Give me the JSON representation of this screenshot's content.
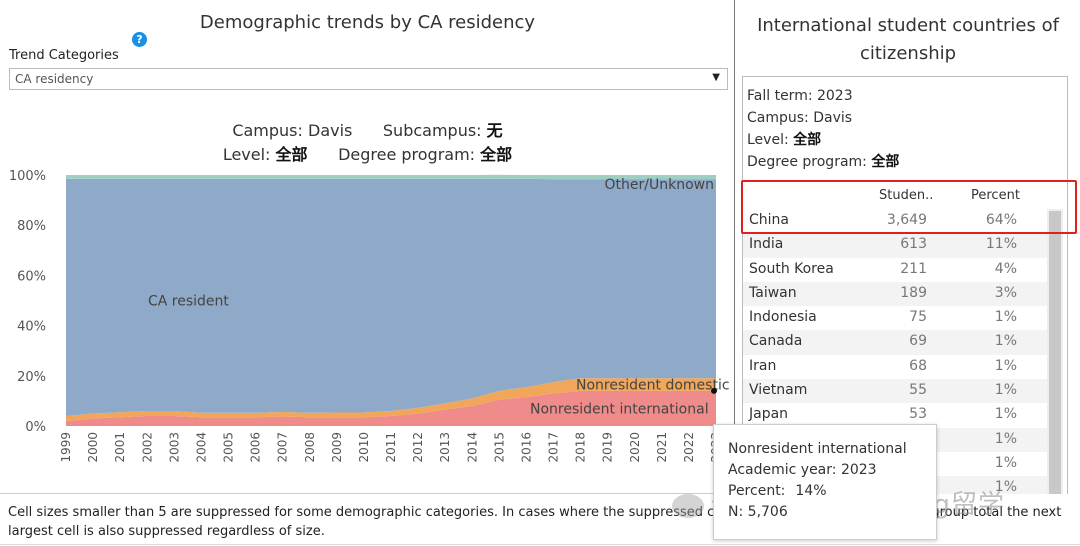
{
  "left": {
    "title": "Demographic trends by CA residency",
    "filter_label": "Trend Categories",
    "dropdown_value": "CA residency",
    "meta1": {
      "campus_label": "Campus:",
      "campus_value": "Davis",
      "subcampus_label": "Subcampus:",
      "subcampus_value": "无"
    },
    "meta2": {
      "level_label": "Level:",
      "level_value": "全部",
      "degree_label": "Degree program:",
      "degree_value": "全部"
    }
  },
  "chart_data": {
    "type": "area",
    "stacked": true,
    "x": [
      "1999",
      "2000",
      "2001",
      "2002",
      "2003",
      "2004",
      "2005",
      "2006",
      "2007",
      "2008",
      "2009",
      "2010",
      "2011",
      "2012",
      "2013",
      "2014",
      "2015",
      "2016",
      "2017",
      "2018",
      "2019",
      "2020",
      "2021",
      "2022",
      "2023"
    ],
    "series": [
      {
        "name": "Nonresident international",
        "color": "#f08b8b",
        "values": [
          2,
          3,
          3.5,
          4,
          4,
          3.5,
          3.5,
          3.5,
          3.8,
          3.5,
          3.5,
          3.5,
          4,
          5,
          6.5,
          8,
          10.5,
          11.5,
          13,
          14,
          14,
          14,
          14,
          14,
          14
        ]
      },
      {
        "name": "Nonresident domestic",
        "color": "#f2a65a",
        "values": [
          2,
          2,
          2,
          2,
          2,
          1.8,
          1.8,
          1.8,
          1.8,
          1.8,
          1.9,
          1.9,
          2,
          2.2,
          2.5,
          3,
          3.5,
          4,
          4.5,
          5,
          5,
          5,
          5,
          5,
          5
        ]
      },
      {
        "name": "CA resident",
        "color": "#8faac8",
        "values": [
          94.5,
          93.5,
          93,
          92.5,
          92.5,
          93.2,
          93.2,
          93.2,
          92.9,
          93.2,
          93.1,
          93.1,
          92.5,
          91.3,
          89.5,
          87.5,
          84.5,
          83,
          80.8,
          79.3,
          79.2,
          79.2,
          79.2,
          79.2,
          79.2
        ]
      },
      {
        "name": "Other/Unknown",
        "color": "#9fcfc3",
        "values": [
          1.5,
          1.5,
          1.5,
          1.5,
          1.5,
          1.5,
          1.5,
          1.5,
          1.5,
          1.5,
          1.5,
          1.5,
          1.5,
          1.5,
          1.5,
          1.5,
          1.6,
          1.5,
          1.7,
          1.7,
          1.8,
          1.8,
          1.8,
          1.8,
          1.8
        ]
      }
    ],
    "ylim": [
      0,
      100
    ],
    "yticks": [
      "0%",
      "20%",
      "40%",
      "60%",
      "80%",
      "100%"
    ],
    "ytick_values": [
      0,
      20,
      40,
      60,
      80,
      100
    ]
  },
  "right": {
    "title_line1": "International student countries of",
    "title_line2": "citizenship",
    "info": {
      "fall_term": "Fall term: 2023",
      "campus": "Campus: Davis",
      "level_label": "Level:",
      "level_value": "全部",
      "degree_label": "Degree program:",
      "degree_value": "全部"
    },
    "headers": {
      "students": "Studen..",
      "percent": "Percent"
    },
    "rows": [
      {
        "country": "China",
        "students": "3,649",
        "percent": "64%"
      },
      {
        "country": "India",
        "students": "613",
        "percent": "11%"
      },
      {
        "country": "South Korea",
        "students": "211",
        "percent": "4%"
      },
      {
        "country": "Taiwan",
        "students": "189",
        "percent": "3%"
      },
      {
        "country": "Indonesia",
        "students": "75",
        "percent": "1%"
      },
      {
        "country": "Canada",
        "students": "69",
        "percent": "1%"
      },
      {
        "country": "Iran",
        "students": "68",
        "percent": "1%"
      },
      {
        "country": "Vietnam",
        "students": "55",
        "percent": "1%"
      },
      {
        "country": "Japan",
        "students": "53",
        "percent": "1%"
      },
      {
        "country": "",
        "students": "",
        "percent": "1%"
      },
      {
        "country": "",
        "students": "",
        "percent": "1%"
      },
      {
        "country": "",
        "students": "",
        "percent": "1%"
      }
    ]
  },
  "tooltip": {
    "series": "Nonresident international",
    "year_label": "Academic year:",
    "year_value": "2023",
    "percent_label": "Percent:",
    "percent_value": "14%",
    "n_label": "N:",
    "n_value": "5,706"
  },
  "footnote": "Cell sizes smaller than 5 are suppressed for some demographic categories. In cases where the suppressed cell is the only cell in a group, the group total the next largest cell is also suppressed regardless of size.",
  "watermark": "公众号 · PeerBang留学"
}
